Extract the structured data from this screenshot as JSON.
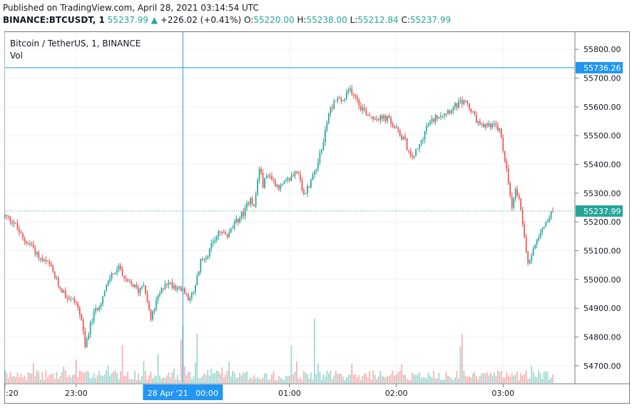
{
  "header": {
    "published": "Published on TradingView.com, April 28, 2021 03:14:54 UTC",
    "symbol": "BINANCE:BTCUSDT, 1",
    "last": "55237.99",
    "arrow": "▲",
    "change": "+226.02 (+0.41%)",
    "o_label": "O:",
    "o_value": "55220.00",
    "h_label": "H:",
    "h_value": "55238.00",
    "l_label": "L:",
    "l_value": "55212.84",
    "c_label": "C:",
    "c_value": "55237.99"
  },
  "legend": {
    "title": "Bitcoin / TetherUS, 1, BINANCE",
    "vol_label": "Vol"
  },
  "colors": {
    "up": "#26a69a",
    "down": "#ef5350",
    "crosshair": "#2196f3",
    "grid": "#f0f3fa"
  },
  "crosshair": {
    "price_label": "55736.26",
    "time_label": "28 Apr '21   00:00",
    "price": 55736.26
  },
  "last_price_label": "55237.99",
  "chart_data": {
    "type": "candlestick",
    "title": "Bitcoin / TetherUS, 1, BINANCE",
    "y_ticks": [
      "55800.00",
      "55700.00",
      "55600.00",
      "55500.00",
      "55400.00",
      "55300.00",
      "55200.00",
      "55100.00",
      "55000.00",
      "54900.00",
      "54800.00",
      "54700.00"
    ],
    "y_tick_values": [
      55800,
      55700,
      55600,
      55500,
      55400,
      55300,
      55200,
      55100,
      55000,
      54900,
      54800,
      54700
    ],
    "x_ticks": [
      ":20",
      "23:00",
      "01:00",
      "02:00",
      "03:00"
    ],
    "x_tick_minutes": [
      -40,
      0,
      120,
      180,
      240
    ],
    "ylim": [
      54640,
      55860
    ],
    "xlim_minutes": [
      -40,
      280
    ],
    "last_price": 55237.99,
    "crosshair_minute": 60,
    "anchors": [
      [
        -40,
        55220
      ],
      [
        -35,
        55200
      ],
      [
        -30,
        55140
      ],
      [
        -25,
        55120
      ],
      [
        -20,
        55070
      ],
      [
        -15,
        55050
      ],
      [
        -10,
        54980
      ],
      [
        -5,
        54940
      ],
      [
        0,
        54920
      ],
      [
        3,
        54860
      ],
      [
        5,
        54760
      ],
      [
        7,
        54820
      ],
      [
        10,
        54880
      ],
      [
        15,
        54940
      ],
      [
        20,
        55020
      ],
      [
        25,
        55040
      ],
      [
        28,
        54990
      ],
      [
        32,
        54980
      ],
      [
        35,
        54960
      ],
      [
        38,
        54990
      ],
      [
        42,
        54860
      ],
      [
        45,
        54920
      ],
      [
        50,
        54990
      ],
      [
        55,
        54980
      ],
      [
        60,
        54960
      ],
      [
        63,
        54940
      ],
      [
        66,
        54950
      ],
      [
        70,
        55060
      ],
      [
        75,
        55100
      ],
      [
        80,
        55170
      ],
      [
        85,
        55150
      ],
      [
        90,
        55200
      ],
      [
        95,
        55240
      ],
      [
        98,
        55290
      ],
      [
        100,
        55250
      ],
      [
        103,
        55390
      ],
      [
        105,
        55330
      ],
      [
        108,
        55370
      ],
      [
        111,
        55340
      ],
      [
        115,
        55320
      ],
      [
        120,
        55350
      ],
      [
        124,
        55380
      ],
      [
        128,
        55290
      ],
      [
        133,
        55360
      ],
      [
        138,
        55450
      ],
      [
        142,
        55580
      ],
      [
        146,
        55630
      ],
      [
        150,
        55620
      ],
      [
        154,
        55660
      ],
      [
        157,
        55640
      ],
      [
        160,
        55600
      ],
      [
        165,
        55570
      ],
      [
        170,
        55560
      ],
      [
        175,
        55560
      ],
      [
        180,
        55520
      ],
      [
        185,
        55480
      ],
      [
        188,
        55420
      ],
      [
        192,
        55450
      ],
      [
        197,
        55530
      ],
      [
        203,
        55570
      ],
      [
        210,
        55590
      ],
      [
        215,
        55610
      ],
      [
        219,
        55620
      ],
      [
        224,
        55560
      ],
      [
        228,
        55530
      ],
      [
        233,
        55540
      ],
      [
        238,
        55520
      ],
      [
        242,
        55380
      ],
      [
        245,
        55240
      ],
      [
        247,
        55320
      ],
      [
        250,
        55250
      ],
      [
        254,
        55050
      ],
      [
        258,
        55130
      ],
      [
        262,
        55180
      ],
      [
        266,
        55220
      ],
      [
        268,
        55237.99
      ]
    ],
    "candle_count": 309
  }
}
